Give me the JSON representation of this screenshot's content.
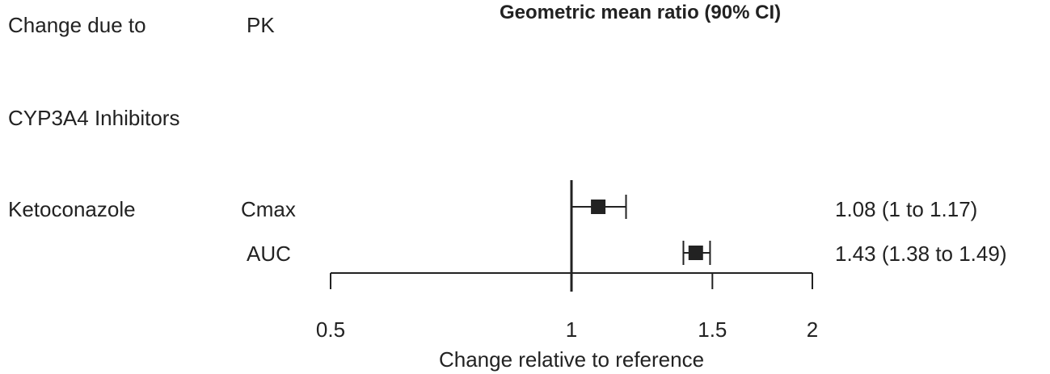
{
  "header": {
    "col1": "Change due to",
    "col2": "PK",
    "title": "Geometric mean ratio (90% CI)"
  },
  "group_label": "CYP3A4 Inhibitors",
  "row_group": "Ketoconazole",
  "rows": [
    {
      "param": "Cmax",
      "ci_text": "1.08 (1 to 1.17)"
    },
    {
      "param": "AUC",
      "ci_text": "1.43 (1.38 to 1.49)"
    }
  ],
  "chart_data": {
    "type": "forest",
    "title": "Geometric mean ratio (90% CI)",
    "xlabel": "Change relative to reference",
    "x_scale": "log",
    "xlim": [
      0.5,
      2
    ],
    "xticks": [
      0.5,
      1,
      1.5,
      2
    ],
    "xtick_labels": [
      "0.5",
      "1",
      "1.5",
      "2"
    ],
    "reference_line": 1,
    "points": [
      {
        "label": "Cmax",
        "estimate": 1.08,
        "lower": 1.0,
        "upper": 1.17
      },
      {
        "label": "AUC",
        "estimate": 1.43,
        "lower": 1.38,
        "upper": 1.49
      }
    ]
  }
}
